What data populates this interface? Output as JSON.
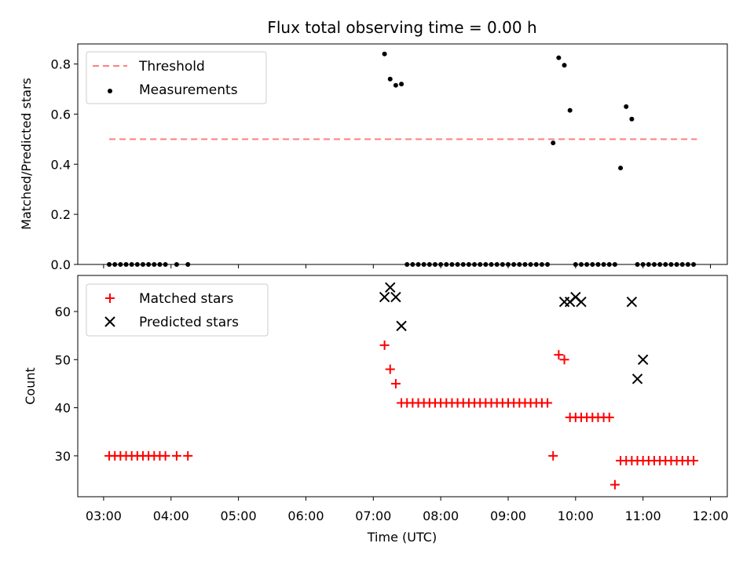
{
  "title": "Flux total observing time = 0.00 h",
  "xlabel": "Time (UTC)",
  "x_ticks": [
    "03:00",
    "04:00",
    "05:00",
    "06:00",
    "07:00",
    "08:00",
    "09:00",
    "10:00",
    "11:00",
    "12:00"
  ],
  "colors": {
    "threshold": "#ff7f7f",
    "measurements": "#000000",
    "matched": "#ff0000",
    "predicted": "#000000"
  },
  "chart_data": [
    {
      "type": "scatter",
      "ylabel": "Matched/Predicted stars",
      "ylim": [
        0,
        0.88
      ],
      "xlim": [
        "02:37",
        "12:15"
      ],
      "y_ticks": [
        "0.0",
        "0.2",
        "0.4",
        "0.6",
        "0.8"
      ],
      "legend": {
        "placement": "top-left",
        "entries": [
          "Threshold",
          "Measurements"
        ]
      },
      "threshold": {
        "name": "Threshold",
        "y": 0.5,
        "x_start": "03:05",
        "x_end": "11:48",
        "style": "dashed"
      },
      "series": [
        {
          "name": "Measurements",
          "x": [
            "03:05",
            "03:10",
            "03:15",
            "03:20",
            "03:25",
            "03:30",
            "03:35",
            "03:40",
            "03:45",
            "03:50",
            "03:55",
            "04:05",
            "04:15",
            "07:10",
            "07:15",
            "07:20",
            "07:25",
            "07:30",
            "07:35",
            "07:40",
            "07:45",
            "07:50",
            "07:55",
            "08:00",
            "08:05",
            "08:10",
            "08:15",
            "08:20",
            "08:25",
            "08:30",
            "08:35",
            "08:40",
            "08:45",
            "08:50",
            "08:55",
            "09:00",
            "09:05",
            "09:10",
            "09:15",
            "09:20",
            "09:25",
            "09:30",
            "09:35",
            "09:40",
            "09:45",
            "09:50",
            "09:55",
            "10:00",
            "10:05",
            "10:10",
            "10:15",
            "10:20",
            "10:25",
            "10:30",
            "10:35",
            "10:40",
            "10:45",
            "10:50",
            "10:55",
            "11:00",
            "11:05",
            "11:10",
            "11:15",
            "11:20",
            "11:25",
            "11:30",
            "11:35",
            "11:40",
            "11:45"
          ],
          "y": [
            0,
            0,
            0,
            0,
            0,
            0,
            0,
            0,
            0,
            0,
            0,
            0,
            0,
            0.84,
            0.74,
            0.715,
            0.72,
            0,
            0,
            0,
            0,
            0,
            0,
            0,
            0,
            0,
            0,
            0,
            0,
            0,
            0,
            0,
            0,
            0,
            0,
            0,
            0,
            0,
            0,
            0,
            0,
            0,
            0,
            0.485,
            0.825,
            0.795,
            0.615,
            0,
            0,
            0,
            0,
            0,
            0,
            0,
            0,
            0.385,
            0.63,
            0.58,
            0,
            0,
            0,
            0,
            0,
            0,
            0,
            0,
            0,
            0,
            0
          ]
        }
      ]
    },
    {
      "type": "scatter",
      "ylabel": "Count",
      "ylim": [
        21.5,
        67.5
      ],
      "xlim": [
        "02:37",
        "12:15"
      ],
      "y_ticks": [
        "30",
        "40",
        "50",
        "60"
      ],
      "legend": {
        "placement": "top-left",
        "entries": [
          "Matched stars",
          "Predicted stars"
        ]
      },
      "series": [
        {
          "name": "Matched stars",
          "marker": "plus",
          "x": [
            "03:05",
            "03:10",
            "03:15",
            "03:20",
            "03:25",
            "03:30",
            "03:35",
            "03:40",
            "03:45",
            "03:50",
            "03:55",
            "04:05",
            "04:15",
            "07:10",
            "07:15",
            "07:20",
            "07:25",
            "07:30",
            "07:35",
            "07:40",
            "07:45",
            "07:50",
            "07:55",
            "08:00",
            "08:05",
            "08:10",
            "08:15",
            "08:20",
            "08:25",
            "08:30",
            "08:35",
            "08:40",
            "08:45",
            "08:50",
            "08:55",
            "09:00",
            "09:05",
            "09:10",
            "09:15",
            "09:20",
            "09:25",
            "09:30",
            "09:35",
            "09:40",
            "09:45",
            "09:50",
            "09:55",
            "10:00",
            "10:05",
            "10:10",
            "10:15",
            "10:20",
            "10:25",
            "10:30",
            "10:35",
            "10:40",
            "10:45",
            "10:50",
            "10:55",
            "11:00",
            "11:05",
            "11:10",
            "11:15",
            "11:20",
            "11:25",
            "11:30",
            "11:35",
            "11:40",
            "11:45"
          ],
          "y": [
            30,
            30,
            30,
            30,
            30,
            30,
            30,
            30,
            30,
            30,
            30,
            30,
            30,
            53,
            48,
            45,
            41,
            41,
            41,
            41,
            41,
            41,
            41,
            41,
            41,
            41,
            41,
            41,
            41,
            41,
            41,
            41,
            41,
            41,
            41,
            41,
            41,
            41,
            41,
            41,
            41,
            41,
            41,
            30,
            51,
            50,
            38,
            38,
            38,
            38,
            38,
            38,
            38,
            38,
            24,
            29,
            29,
            29,
            29,
            29,
            29,
            29,
            29,
            29,
            29,
            29,
            29,
            29,
            29
          ]
        },
        {
          "name": "Predicted stars",
          "marker": "x",
          "x": [
            "07:10",
            "07:15",
            "07:20",
            "07:25",
            "09:50",
            "09:55",
            "10:00",
            "10:05",
            "10:50",
            "10:55",
            "11:00"
          ],
          "y": [
            63,
            65,
            63,
            57,
            62,
            62,
            63,
            62,
            62,
            46,
            50
          ]
        }
      ]
    }
  ]
}
